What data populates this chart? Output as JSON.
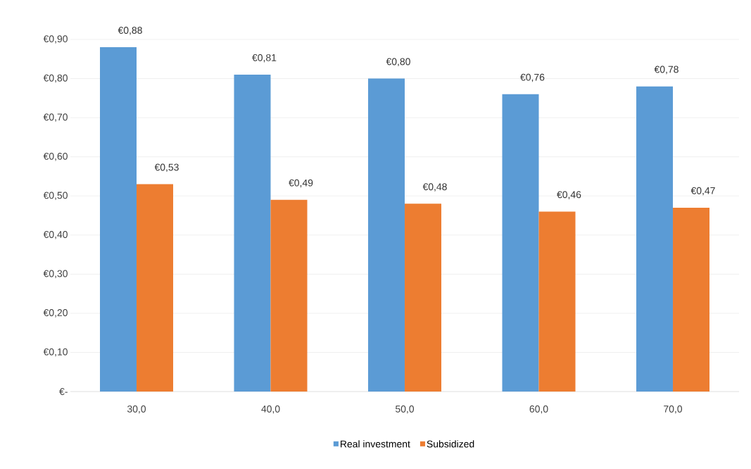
{
  "chart_data": {
    "type": "bar",
    "categories": [
      "30,0",
      "40,0",
      "50,0",
      "60,0",
      "70,0"
    ],
    "series": [
      {
        "name": "Real investment",
        "color": "#5b9bd5",
        "values": [
          0.88,
          0.81,
          0.8,
          0.76,
          0.78
        ],
        "value_labels": [
          "€0,88",
          "€0,81",
          "€0,80",
          "€0,76",
          "€0,78"
        ]
      },
      {
        "name": "Subsidized",
        "color": "#ed7d31",
        "values": [
          0.53,
          0.49,
          0.48,
          0.46,
          0.47
        ],
        "value_labels": [
          "€0,53",
          "€0,49",
          "€0,48",
          "€0,46",
          "€0,47"
        ]
      }
    ],
    "ylim": [
      0,
      0.9
    ],
    "yticks": [
      {
        "value": 0,
        "label": "€-"
      },
      {
        "value": 0.1,
        "label": "€0,10"
      },
      {
        "value": 0.2,
        "label": "€0,20"
      },
      {
        "value": 0.3,
        "label": "€0,30"
      },
      {
        "value": 0.4,
        "label": "€0,40"
      },
      {
        "value": 0.5,
        "label": "€0,50"
      },
      {
        "value": 0.6,
        "label": "€0,60"
      },
      {
        "value": 0.7,
        "label": "€0,70"
      },
      {
        "value": 0.8,
        "label": "€0,80"
      },
      {
        "value": 0.9,
        "label": "€0,90"
      }
    ],
    "grid": "y",
    "legend": "bottom"
  }
}
